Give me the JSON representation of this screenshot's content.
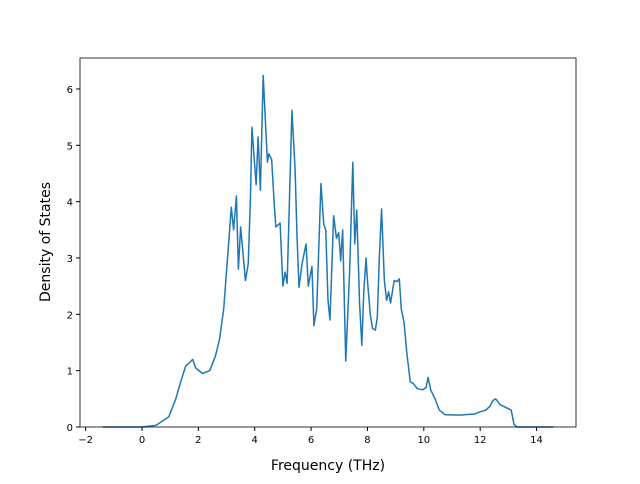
{
  "chart_data": {
    "type": "line",
    "xlabel": "Frequency (THz)",
    "ylabel": "Density of States",
    "x": [
      -1.4,
      0,
      0.5,
      0.95,
      1.2,
      1.37,
      1.55,
      1.8,
      1.9,
      2.15,
      2.4,
      2.6,
      2.75,
      2.9,
      3.17,
      3.25,
      3.35,
      3.42,
      3.5,
      3.67,
      3.77,
      3.85,
      3.9,
      4.05,
      4.12,
      4.2,
      4.3,
      4.45,
      4.5,
      4.6,
      4.7,
      4.75,
      4.9,
      5.0,
      5.08,
      5.15,
      5.32,
      5.43,
      5.5,
      5.57,
      5.68,
      5.82,
      5.9,
      6.03,
      6.1,
      6.2,
      6.35,
      6.45,
      6.52,
      6.6,
      6.67,
      6.8,
      6.9,
      6.98,
      7.05,
      7.12,
      7.23,
      7.37,
      7.48,
      7.55,
      7.62,
      7.72,
      7.8,
      7.87,
      7.95,
      8.0,
      8.1,
      8.18,
      8.28,
      8.35,
      8.42,
      8.5,
      8.6,
      8.68,
      8.75,
      8.82,
      8.9,
      8.95,
      9.05,
      9.13,
      9.2,
      9.3,
      9.4,
      9.52,
      9.63,
      9.77,
      9.95,
      10.08,
      10.15,
      10.25,
      10.4,
      10.55,
      10.75,
      11.25,
      11.8,
      12.0,
      12.2,
      12.35,
      12.45,
      12.55,
      12.7,
      12.9,
      13.1,
      13.2,
      13.3,
      14.6
    ],
    "series": [
      {
        "color": "#1f77b4",
        "values": [
          0,
          0,
          0.03,
          0.18,
          0.5,
          0.8,
          1.08,
          1.2,
          1.05,
          0.95,
          1.0,
          1.25,
          1.55,
          2.1,
          3.9,
          3.5,
          4.1,
          2.8,
          3.55,
          2.6,
          2.9,
          4.1,
          5.32,
          4.3,
          5.15,
          4.2,
          6.24,
          4.7,
          4.85,
          4.75,
          3.9,
          3.55,
          3.62,
          2.5,
          2.75,
          2.55,
          5.62,
          4.6,
          3.4,
          2.48,
          2.9,
          3.25,
          2.5,
          2.85,
          1.8,
          2.1,
          4.32,
          3.6,
          3.5,
          2.25,
          1.9,
          3.75,
          3.35,
          3.45,
          2.95,
          3.5,
          1.17,
          2.8,
          4.7,
          3.25,
          3.85,
          2.2,
          1.45,
          2.4,
          3.0,
          2.6,
          2.0,
          1.75,
          1.72,
          1.95,
          3.0,
          3.87,
          2.6,
          2.25,
          2.4,
          2.2,
          2.45,
          2.6,
          2.58,
          2.63,
          2.1,
          1.85,
          1.3,
          0.8,
          0.77,
          0.68,
          0.66,
          0.7,
          0.88,
          0.65,
          0.5,
          0.3,
          0.22,
          0.21,
          0.23,
          0.27,
          0.3,
          0.37,
          0.47,
          0.5,
          0.4,
          0.35,
          0.3,
          0.05,
          0,
          0
        ]
      }
    ],
    "xlim": [
      -2.2,
      15.4
    ],
    "ylim": [
      0,
      6.55
    ],
    "xticks": [
      {
        "value": -2,
        "label": "−2"
      },
      0,
      2,
      4,
      6,
      8,
      10,
      12,
      14
    ],
    "yticks": [
      0,
      1,
      2,
      3,
      4,
      5,
      6
    ]
  }
}
